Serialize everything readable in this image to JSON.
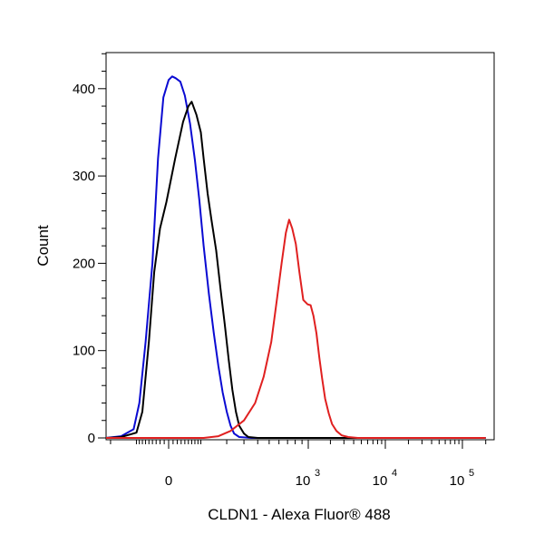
{
  "chart_data": {
    "type": "line",
    "title": "",
    "xlabel": "CLDN1 - Alexa Fluor® 488",
    "ylabel": "Count",
    "x_scale": "biexponential",
    "x_ticks": [
      {
        "value": 0,
        "base": "0",
        "exp": ""
      },
      {
        "value": 1000,
        "base": "10",
        "exp": "3"
      },
      {
        "value": 10000,
        "base": "10",
        "exp": "4"
      },
      {
        "value": 100000,
        "base": "10",
        "exp": "5"
      }
    ],
    "y_ticks": [
      {
        "value": 0,
        "label": "0"
      },
      {
        "value": 100,
        "label": "100"
      },
      {
        "value": 200,
        "label": "200"
      },
      {
        "value": 300,
        "label": "300"
      },
      {
        "value": 400,
        "label": "400"
      }
    ],
    "ylim": [
      -2,
      442
    ],
    "grid": false,
    "legend": "none",
    "series": [
      {
        "color": "#0a0ad2",
        "points": [
          [
            -400,
            0
          ],
          [
            -150,
            2
          ],
          [
            -100,
            10
          ],
          [
            -80,
            40
          ],
          [
            -60,
            110
          ],
          [
            -40,
            200
          ],
          [
            -25,
            320
          ],
          [
            -12,
            390
          ],
          [
            0,
            410
          ],
          [
            8,
            414
          ],
          [
            16,
            412
          ],
          [
            28,
            408
          ],
          [
            40,
            392
          ],
          [
            55,
            360
          ],
          [
            70,
            318
          ],
          [
            85,
            272
          ],
          [
            100,
            220
          ],
          [
            120,
            165
          ],
          [
            140,
            120
          ],
          [
            160,
            82
          ],
          [
            180,
            52
          ],
          [
            200,
            30
          ],
          [
            220,
            14
          ],
          [
            240,
            5
          ],
          [
            270,
            1
          ],
          [
            350,
            0
          ],
          [
            2000,
            0
          ],
          [
            200000,
            0
          ]
        ]
      },
      {
        "color": "#000000",
        "points": [
          [
            -400,
            0
          ],
          [
            -150,
            1
          ],
          [
            -90,
            6
          ],
          [
            -70,
            30
          ],
          [
            -50,
            110
          ],
          [
            -35,
            190
          ],
          [
            -20,
            240
          ],
          [
            -5,
            270
          ],
          [
            15,
            320
          ],
          [
            35,
            362
          ],
          [
            50,
            380
          ],
          [
            60,
            385
          ],
          [
            75,
            370
          ],
          [
            90,
            350
          ],
          [
            100,
            320
          ],
          [
            115,
            280
          ],
          [
            130,
            250
          ],
          [
            150,
            215
          ],
          [
            170,
            170
          ],
          [
            190,
            130
          ],
          [
            210,
            90
          ],
          [
            230,
            55
          ],
          [
            250,
            30
          ],
          [
            270,
            14
          ],
          [
            300,
            5
          ],
          [
            330,
            1
          ],
          [
            400,
            0
          ],
          [
            2000,
            0
          ],
          [
            200000,
            0
          ]
        ]
      },
      {
        "color": "#e02020",
        "points": [
          [
            -400,
            0
          ],
          [
            100,
            0
          ],
          [
            160,
            2
          ],
          [
            220,
            8
          ],
          [
            300,
            20
          ],
          [
            380,
            40
          ],
          [
            450,
            70
          ],
          [
            520,
            110
          ],
          [
            580,
            160
          ],
          [
            630,
            200
          ],
          [
            680,
            235
          ],
          [
            720,
            250
          ],
          [
            760,
            240
          ],
          [
            810,
            222
          ],
          [
            860,
            190
          ],
          [
            920,
            158
          ],
          [
            990,
            153
          ],
          [
            1080,
            152
          ],
          [
            1180,
            140
          ],
          [
            1300,
            120
          ],
          [
            1420,
            92
          ],
          [
            1550,
            68
          ],
          [
            1700,
            45
          ],
          [
            1900,
            28
          ],
          [
            2100,
            16
          ],
          [
            2400,
            8
          ],
          [
            2800,
            3
          ],
          [
            3400,
            1
          ],
          [
            4500,
            0
          ],
          [
            200000,
            0
          ]
        ]
      }
    ]
  }
}
